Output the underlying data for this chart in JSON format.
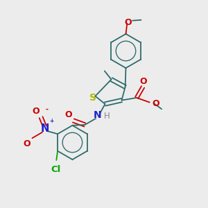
{
  "bg_color": "#ececec",
  "bond_color": "#2d6b6b",
  "atom_colors": {
    "S": "#b8b800",
    "N_amine": "#2020cc",
    "N_nitro": "#2020cc",
    "O": "#cc0000",
    "Cl": "#00aa00",
    "H": "#888888",
    "C": "#2d6b6b"
  },
  "lw": 1.3,
  "font_size": 8.5
}
